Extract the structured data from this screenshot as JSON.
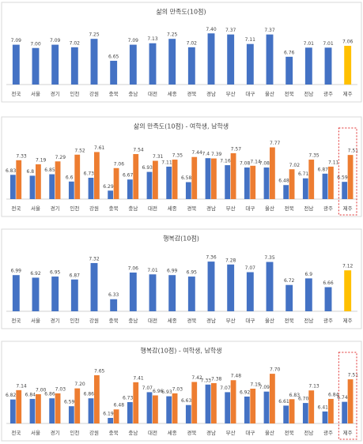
{
  "chart_data": [
    {
      "type": "bar",
      "title": "삶의 만족도(10점)",
      "categories": [
        "전국",
        "서울",
        "경기",
        "인천",
        "강원",
        "충북",
        "충남",
        "대전",
        "세종",
        "경북",
        "경남",
        "부산",
        "대구",
        "울산",
        "전북",
        "전남",
        "광주",
        "제주"
      ],
      "values": [
        7.09,
        7.0,
        7.09,
        7.02,
        7.25,
        6.65,
        7.09,
        7.13,
        7.25,
        7.02,
        7.4,
        7.37,
        7.11,
        7.37,
        6.76,
        7.01,
        7.01,
        7.06
      ],
      "value_labels": [
        "7.09",
        "7.00",
        "7.09",
        "7.02",
        "7.25",
        "6.65",
        "7.09",
        "7.13",
        "7.25",
        "7.02",
        "7.40",
        "7.37",
        "7.11",
        "7.37",
        "6.76",
        "7.01",
        "7.01",
        "7.06"
      ],
      "colors": [
        "#4472c4",
        "#4472c4",
        "#4472c4",
        "#4472c4",
        "#4472c4",
        "#4472c4",
        "#4472c4",
        "#4472c4",
        "#4472c4",
        "#4472c4",
        "#4472c4",
        "#4472c4",
        "#4472c4",
        "#4472c4",
        "#4472c4",
        "#4472c4",
        "#4472c4",
        "#ffc000"
      ],
      "ylim": [
        6,
        7.6
      ]
    },
    {
      "type": "bar",
      "title": "삶의 만족도(10점) - 여학생, 남학생",
      "categories": [
        "전국",
        "서울",
        "경기",
        "인천",
        "강원",
        "충북",
        "충남",
        "대전",
        "세종",
        "경북",
        "경남",
        "부산",
        "대구",
        "울산",
        "전북",
        "전남",
        "광주",
        "제주"
      ],
      "series": [
        {
          "color": "#4472c4",
          "values": [
            6.83,
            6.8,
            6.85,
            6.6,
            6.73,
            6.29,
            6.67,
            6.93,
            7.11,
            6.58,
            7.4,
            7.16,
            7.08,
            7.08,
            6.48,
            6.71,
            6.87,
            6.59
          ]
        },
        {
          "color": "#ed7d31",
          "values": [
            7.33,
            7.19,
            7.29,
            7.52,
            7.61,
            7.06,
            7.54,
            7.31,
            7.35,
            7.44,
            7.39,
            7.57,
            7.14,
            7.77,
            7.02,
            7.35,
            7.11,
            7.51
          ]
        }
      ],
      "ylim": [
        6,
        8
      ]
    },
    {
      "type": "bar",
      "title": "행복감(10점)",
      "categories": [
        "전국",
        "서울",
        "경기",
        "인천",
        "강원",
        "충북",
        "충남",
        "대전",
        "세종",
        "경북",
        "경남",
        "부산",
        "대구",
        "울산",
        "전북",
        "전남",
        "광주",
        "제주"
      ],
      "values": [
        6.99,
        6.92,
        6.95,
        6.87,
        7.32,
        6.33,
        7.06,
        7.01,
        6.99,
        6.95,
        7.36,
        7.28,
        7.07,
        7.35,
        6.72,
        6.9,
        6.66,
        7.12
      ],
      "colors": [
        "#4472c4",
        "#4472c4",
        "#4472c4",
        "#4472c4",
        "#4472c4",
        "#4472c4",
        "#4472c4",
        "#4472c4",
        "#4472c4",
        "#4472c4",
        "#4472c4",
        "#4472c4",
        "#4472c4",
        "#4472c4",
        "#4472c4",
        "#4472c4",
        "#4472c4",
        "#ffc000"
      ],
      "ylim": [
        6,
        7.6
      ]
    },
    {
      "type": "bar",
      "title": "행복감(10점) - 여학생, 남학생",
      "categories": [
        "전국",
        "서울",
        "경기",
        "인천",
        "강원",
        "충북",
        "충남",
        "대전",
        "세종",
        "경북",
        "경남",
        "부산",
        "대구",
        "울산",
        "전북",
        "전남",
        "광주",
        "제주"
      ],
      "series": [
        {
          "color": "#4472c4",
          "values": [
            6.82,
            6.84,
            6.86,
            6.59,
            6.86,
            6.19,
            6.73,
            7.07,
            6.93,
            6.63,
            7.33,
            7.07,
            6.92,
            7.09,
            6.61,
            6.7,
            6.41,
            6.74
          ]
        },
        {
          "color": "#ed7d31",
          "values": [
            7.14,
            7.0,
            7.03,
            7.2,
            7.65,
            6.48,
            7.41,
            6.96,
            7.03,
            7.42,
            7.38,
            7.48,
            7.19,
            7.7,
            6.83,
            7.13,
            6.84,
            7.51
          ]
        }
      ],
      "value_labels": [
        [
          "6.82",
          "6.84",
          "6.86",
          "6.59",
          "6.86",
          "6.19",
          "6.73",
          "7.07",
          "6.93",
          "6.63",
          "7.33",
          "7.07",
          "6.92",
          "7.09",
          "6.61",
          "6.70",
          "6.41",
          "6.74"
        ],
        [
          "7.14",
          "7.00",
          "7.03",
          "7.20",
          "7.65",
          "6.48",
          "7.41",
          "6.96",
          "7.03",
          "7.42",
          "7.38",
          "7.48",
          "7.19",
          "7.70",
          "6.83",
          "7.13",
          "6.84",
          "7.51"
        ]
      ],
      "ylim": [
        6,
        8
      ]
    }
  ]
}
